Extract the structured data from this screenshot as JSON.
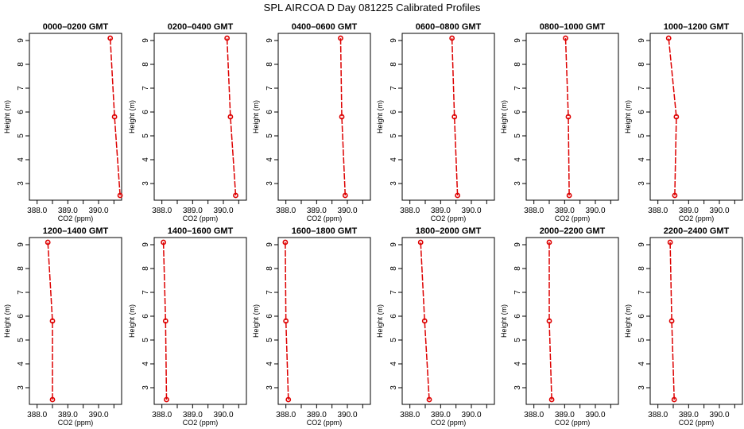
{
  "figure": {
    "title": "SPL AIRCOA D  Day 081225  Calibrated Profiles"
  },
  "style": {
    "line_color": "#dd0000",
    "axis_color": "#000000",
    "background": "#ffffff"
  },
  "chart_data": [
    {
      "type": "line",
      "title": "0000–0200 GMT",
      "xlabel": "CO2 (ppm)",
      "ylabel": "Height (m)",
      "xticks": [
        "388.0",
        "389.0",
        "390.0"
      ],
      "yticks": [
        "3",
        "4",
        "5",
        "6",
        "7",
        "8",
        "9"
      ],
      "xlim": [
        387.75,
        390.75
      ],
      "ylim": [
        2.3,
        9.3
      ],
      "grid": false,
      "series": [
        {
          "x": [
            390.7,
            390.52,
            390.38
          ],
          "y": [
            2.5,
            5.8,
            9.1
          ]
        }
      ]
    },
    {
      "type": "line",
      "title": "0200–0400 GMT",
      "xlabel": "CO2 (ppm)",
      "ylabel": "Height (m)",
      "xticks": [
        "388.0",
        "389.0",
        "390.0"
      ],
      "yticks": [
        "3",
        "4",
        "5",
        "6",
        "7",
        "8",
        "9"
      ],
      "xlim": [
        387.75,
        390.75
      ],
      "ylim": [
        2.3,
        9.3
      ],
      "grid": false,
      "series": [
        {
          "x": [
            390.4,
            390.23,
            390.12
          ],
          "y": [
            2.5,
            5.8,
            9.1
          ]
        }
      ]
    },
    {
      "type": "line",
      "title": "0400–0600 GMT",
      "xlabel": "CO2 (ppm)",
      "ylabel": "Height (m)",
      "xticks": [
        "388.0",
        "389.0",
        "390.0"
      ],
      "yticks": [
        "3",
        "4",
        "5",
        "6",
        "7",
        "8",
        "9"
      ],
      "xlim": [
        387.75,
        390.75
      ],
      "ylim": [
        2.3,
        9.3
      ],
      "grid": false,
      "series": [
        {
          "x": [
            389.93,
            389.82,
            389.78
          ],
          "y": [
            2.5,
            5.8,
            9.1
          ]
        }
      ]
    },
    {
      "type": "line",
      "title": "0600–0800 GMT",
      "xlabel": "CO2 (ppm)",
      "ylabel": "Height (m)",
      "xticks": [
        "388.0",
        "389.0",
        "390.0"
      ],
      "yticks": [
        "3",
        "4",
        "5",
        "6",
        "7",
        "8",
        "9"
      ],
      "xlim": [
        387.75,
        390.75
      ],
      "ylim": [
        2.3,
        9.3
      ],
      "grid": false,
      "series": [
        {
          "x": [
            389.55,
            389.45,
            389.37
          ],
          "y": [
            2.5,
            5.8,
            9.1
          ]
        }
      ]
    },
    {
      "type": "line",
      "title": "0800–1000 GMT",
      "xlabel": "CO2 (ppm)",
      "ylabel": "Height (m)",
      "xticks": [
        "388.0",
        "389.0",
        "390.0"
      ],
      "yticks": [
        "3",
        "4",
        "5",
        "6",
        "7",
        "8",
        "9"
      ],
      "xlim": [
        387.75,
        390.75
      ],
      "ylim": [
        2.3,
        9.3
      ],
      "grid": false,
      "series": [
        {
          "x": [
            389.15,
            389.12,
            389.03
          ],
          "y": [
            2.5,
            5.8,
            9.1
          ]
        }
      ]
    },
    {
      "type": "line",
      "title": "1000–1200 GMT",
      "xlabel": "CO2 (ppm)",
      "ylabel": "Height (m)",
      "xticks": [
        "388.0",
        "389.0",
        "390.0"
      ],
      "yticks": [
        "3",
        "4",
        "5",
        "6",
        "7",
        "8",
        "9"
      ],
      "xlim": [
        387.75,
        390.75
      ],
      "ylim": [
        2.3,
        9.3
      ],
      "grid": false,
      "series": [
        {
          "x": [
            388.55,
            388.6,
            388.35
          ],
          "y": [
            2.5,
            5.8,
            9.1
          ]
        }
      ]
    },
    {
      "type": "line",
      "title": "1200–1400 GMT",
      "xlabel": "CO2 (ppm)",
      "ylabel": "Height (m)",
      "xticks": [
        "388.0",
        "389.0",
        "390.0"
      ],
      "yticks": [
        "3",
        "4",
        "5",
        "6",
        "7",
        "8",
        "9"
      ],
      "xlim": [
        387.75,
        390.75
      ],
      "ylim": [
        2.3,
        9.3
      ],
      "grid": false,
      "series": [
        {
          "x": [
            388.5,
            388.5,
            388.35
          ],
          "y": [
            2.5,
            5.8,
            9.1
          ]
        }
      ]
    },
    {
      "type": "line",
      "title": "1400–1600 GMT",
      "xlabel": "CO2 (ppm)",
      "ylabel": "Height (m)",
      "xticks": [
        "388.0",
        "389.0",
        "390.0"
      ],
      "yticks": [
        "3",
        "4",
        "5",
        "6",
        "7",
        "8",
        "9"
      ],
      "xlim": [
        387.75,
        390.75
      ],
      "ylim": [
        2.3,
        9.3
      ],
      "grid": false,
      "series": [
        {
          "x": [
            388.15,
            388.12,
            388.05
          ],
          "y": [
            2.5,
            5.8,
            9.1
          ]
        }
      ]
    },
    {
      "type": "line",
      "title": "1600–1800 GMT",
      "xlabel": "CO2 (ppm)",
      "ylabel": "Height (m)",
      "xticks": [
        "388.0",
        "389.0",
        "390.0"
      ],
      "yticks": [
        "3",
        "4",
        "5",
        "6",
        "7",
        "8",
        "9"
      ],
      "xlim": [
        387.75,
        390.75
      ],
      "ylim": [
        2.3,
        9.3
      ],
      "grid": false,
      "series": [
        {
          "x": [
            388.08,
            388.0,
            387.98
          ],
          "y": [
            2.5,
            5.8,
            9.1
          ]
        }
      ]
    },
    {
      "type": "line",
      "title": "1800–2000 GMT",
      "xlabel": "CO2 (ppm)",
      "ylabel": "Height (m)",
      "xticks": [
        "388.0",
        "389.0",
        "390.0"
      ],
      "yticks": [
        "3",
        "4",
        "5",
        "6",
        "7",
        "8",
        "9"
      ],
      "xlim": [
        387.75,
        390.75
      ],
      "ylim": [
        2.3,
        9.3
      ],
      "grid": false,
      "series": [
        {
          "x": [
            388.63,
            388.48,
            388.35
          ],
          "y": [
            2.5,
            5.8,
            9.1
          ]
        }
      ]
    },
    {
      "type": "line",
      "title": "2000–2200 GMT",
      "xlabel": "CO2 (ppm)",
      "ylabel": "Height (m)",
      "xticks": [
        "388.0",
        "389.0",
        "390.0"
      ],
      "yticks": [
        "3",
        "4",
        "5",
        "6",
        "7",
        "8",
        "9"
      ],
      "xlim": [
        387.75,
        390.75
      ],
      "ylim": [
        2.3,
        9.3
      ],
      "grid": false,
      "series": [
        {
          "x": [
            388.58,
            388.5,
            388.5
          ],
          "y": [
            2.5,
            5.8,
            9.1
          ]
        }
      ]
    },
    {
      "type": "line",
      "title": "2200–2400 GMT",
      "xlabel": "CO2 (ppm)",
      "ylabel": "Height (m)",
      "xticks": [
        "388.0",
        "389.0",
        "390.0"
      ],
      "yticks": [
        "3",
        "4",
        "5",
        "6",
        "7",
        "8",
        "9"
      ],
      "xlim": [
        387.75,
        390.75
      ],
      "ylim": [
        2.3,
        9.3
      ],
      "grid": false,
      "series": [
        {
          "x": [
            388.53,
            388.45,
            388.4
          ],
          "y": [
            2.5,
            5.8,
            9.1
          ]
        }
      ]
    }
  ]
}
